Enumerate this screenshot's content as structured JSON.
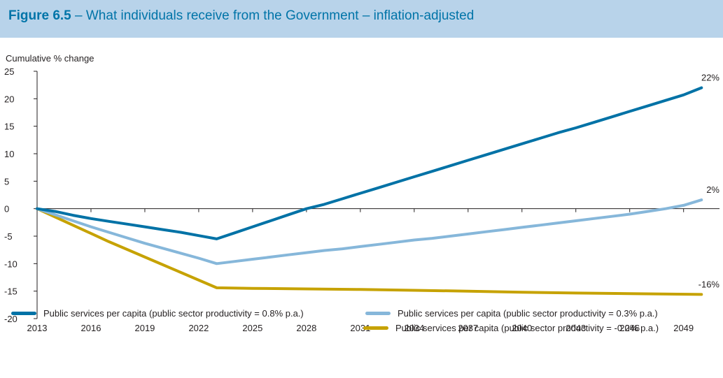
{
  "header": {
    "figure_label": "Figure 6.5",
    "title_text": " – What individuals receive from the Government – inflation-adjusted"
  },
  "colors": {
    "header_bg": "#b8d3ea",
    "series_0p8": "#0072a6",
    "series_0p3": "#86b7da",
    "series_neg0p2": "#c6a200"
  },
  "chart_data": {
    "type": "line",
    "title": "What individuals receive from the Government – inflation-adjusted",
    "ylabel": "Cumulative % change",
    "xlabel": "",
    "ylim": [
      -20,
      25
    ],
    "xlim": [
      2013,
      2051
    ],
    "y_ticks": [
      "25",
      "20",
      "15",
      "10",
      "5",
      "0",
      "-5",
      "-10",
      "-15",
      "-20"
    ],
    "x_ticks": [
      "2013",
      "2016",
      "2019",
      "2022",
      "2025",
      "2028",
      "2031",
      "2034",
      "2037",
      "2040",
      "2043",
      "2046",
      "2049"
    ],
    "grid": false,
    "legend_position": "bottom",
    "series": [
      {
        "name": "Public services per capita (public sector productivity = 0.8% p.a.)",
        "end_label": "22%",
        "points": [
          [
            2013,
            0
          ],
          [
            2014,
            -0.5
          ],
          [
            2015,
            -1.2
          ],
          [
            2016,
            -1.8
          ],
          [
            2017,
            -2.3
          ],
          [
            2018,
            -2.8
          ],
          [
            2019,
            -3.3
          ],
          [
            2020,
            -3.8
          ],
          [
            2021,
            -4.3
          ],
          [
            2022,
            -4.9
          ],
          [
            2023,
            -5.5
          ],
          [
            2024,
            -4.4
          ],
          [
            2025,
            -3.3
          ],
          [
            2026,
            -2.2
          ],
          [
            2027,
            -1.1
          ],
          [
            2028,
            0
          ],
          [
            2029,
            0.8
          ],
          [
            2030,
            1.8
          ],
          [
            2031,
            2.8
          ],
          [
            2032,
            3.8
          ],
          [
            2033,
            4.8
          ],
          [
            2034,
            5.8
          ],
          [
            2035,
            6.8
          ],
          [
            2036,
            7.8
          ],
          [
            2037,
            8.8
          ],
          [
            2038,
            9.8
          ],
          [
            2039,
            10.8
          ],
          [
            2040,
            11.8
          ],
          [
            2041,
            12.8
          ],
          [
            2042,
            13.8
          ],
          [
            2043,
            14.7
          ],
          [
            2044,
            15.7
          ],
          [
            2045,
            16.7
          ],
          [
            2046,
            17.7
          ],
          [
            2047,
            18.7
          ],
          [
            2048,
            19.7
          ],
          [
            2049,
            20.7
          ],
          [
            2050,
            22
          ]
        ]
      },
      {
        "name": "Public services per capita (public sector productivity = 0.3% p.a.)",
        "end_label": "2%",
        "points": [
          [
            2013,
            0
          ],
          [
            2014,
            -1.1
          ],
          [
            2015,
            -2.2
          ],
          [
            2016,
            -3.3
          ],
          [
            2017,
            -4.3
          ],
          [
            2018,
            -5.3
          ],
          [
            2019,
            -6.3
          ],
          [
            2020,
            -7.2
          ],
          [
            2021,
            -8.1
          ],
          [
            2022,
            -9.0
          ],
          [
            2023,
            -10
          ],
          [
            2024,
            -9.6
          ],
          [
            2025,
            -9.2
          ],
          [
            2026,
            -8.8
          ],
          [
            2027,
            -8.4
          ],
          [
            2028,
            -8.0
          ],
          [
            2029,
            -7.6
          ],
          [
            2030,
            -7.3
          ],
          [
            2031,
            -6.9
          ],
          [
            2032,
            -6.5
          ],
          [
            2033,
            -6.1
          ],
          [
            2034,
            -5.7
          ],
          [
            2035,
            -5.4
          ],
          [
            2036,
            -5.0
          ],
          [
            2037,
            -4.6
          ],
          [
            2038,
            -4.2
          ],
          [
            2039,
            -3.8
          ],
          [
            2040,
            -3.4
          ],
          [
            2041,
            -3.0
          ],
          [
            2042,
            -2.6
          ],
          [
            2043,
            -2.2
          ],
          [
            2044,
            -1.8
          ],
          [
            2045,
            -1.4
          ],
          [
            2046,
            -1.0
          ],
          [
            2047,
            -0.5
          ],
          [
            2048,
            0
          ],
          [
            2049,
            0.6
          ],
          [
            2050,
            1.6
          ]
        ]
      },
      {
        "name": "Public services per capita (public sector productivity = -0.2% p.a.)",
        "end_label": "-16%",
        "points": [
          [
            2013,
            0
          ],
          [
            2014,
            -1.5
          ],
          [
            2015,
            -3.0
          ],
          [
            2016,
            -4.5
          ],
          [
            2017,
            -6.0
          ],
          [
            2018,
            -7.4
          ],
          [
            2019,
            -8.8
          ],
          [
            2020,
            -10.2
          ],
          [
            2021,
            -11.6
          ],
          [
            2022,
            -13.0
          ],
          [
            2023,
            -14.4
          ],
          [
            2025,
            -14.5
          ],
          [
            2028,
            -14.6
          ],
          [
            2031,
            -14.7
          ],
          [
            2034,
            -14.85
          ],
          [
            2037,
            -15.0
          ],
          [
            2040,
            -15.2
          ],
          [
            2043,
            -15.35
          ],
          [
            2046,
            -15.45
          ],
          [
            2050,
            -15.6
          ]
        ]
      }
    ]
  }
}
